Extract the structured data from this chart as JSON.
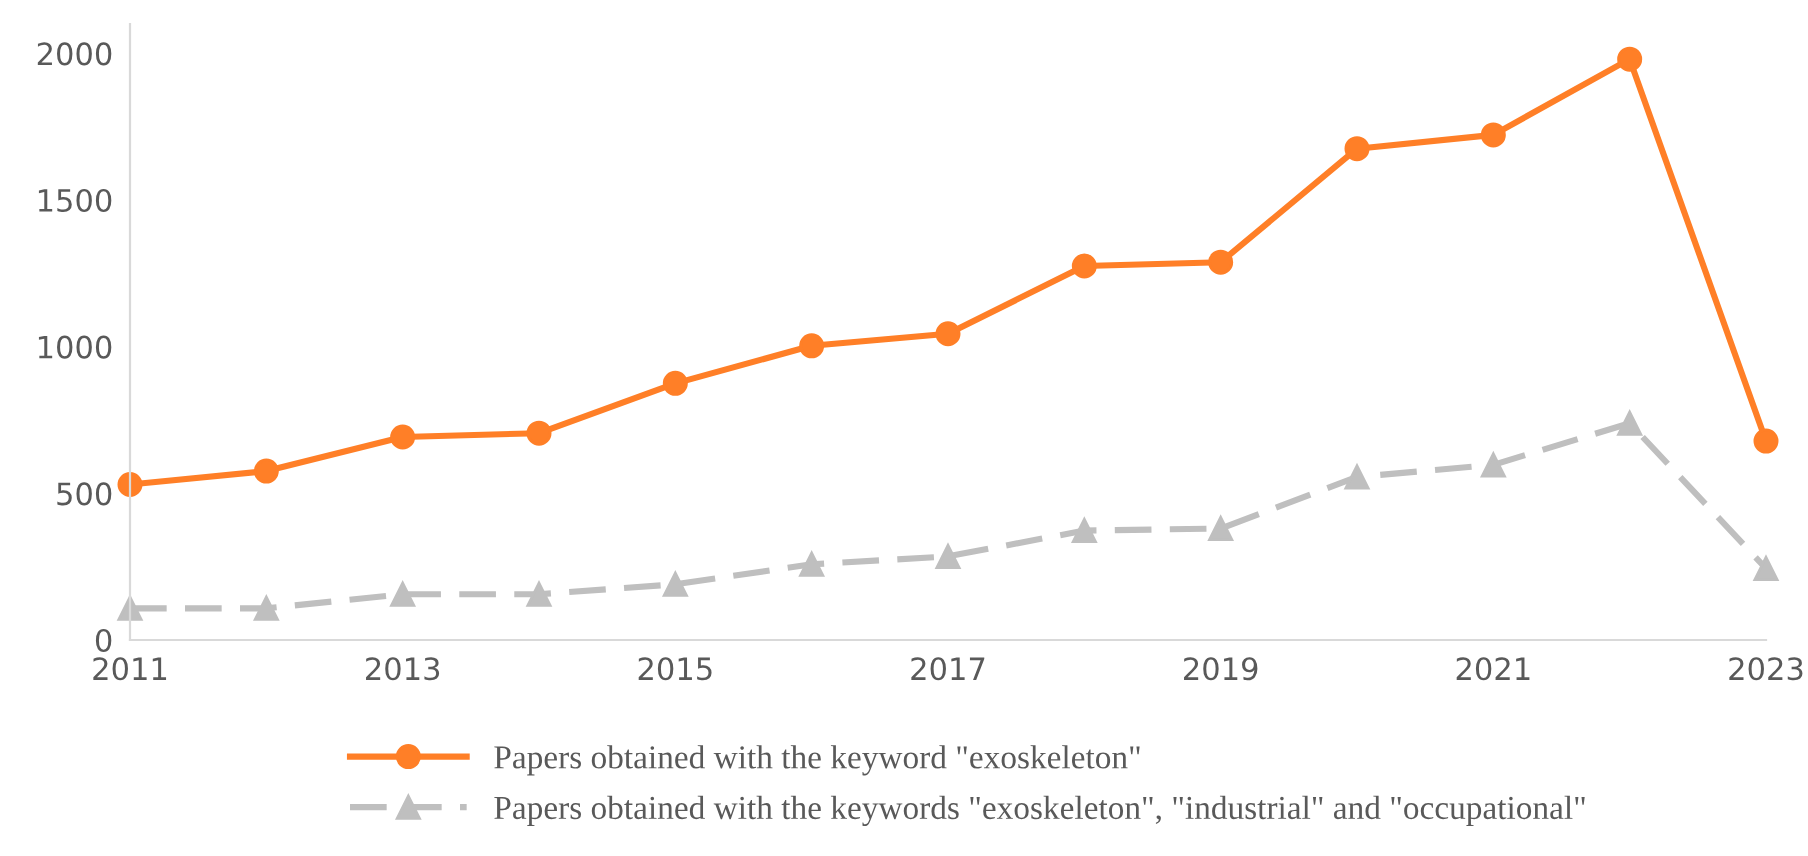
{
  "chart_data": {
    "type": "line",
    "x": [
      2011,
      2012,
      2013,
      2014,
      2015,
      2016,
      2017,
      2018,
      2019,
      2020,
      2021,
      2022,
      2023
    ],
    "series": [
      {
        "name": "Papers obtained with the keyword \"exoskeleton\"",
        "color": "#ff7f27",
        "marker": "circle",
        "line_style": "solid",
        "values": [
          530,
          576,
          692,
          705,
          875,
          1003,
          1044,
          1275,
          1288,
          1675,
          1722,
          1980,
          678
        ]
      },
      {
        "name": "Papers obtained with the keywords \"exoskeleton\", \"industrial\" and \"occupational\"",
        "color": "#bfbfbf",
        "marker": "triangle",
        "line_style": "dashed",
        "values": [
          108,
          108,
          156,
          156,
          190,
          258,
          285,
          373,
          380,
          556,
          597,
          739,
          244
        ]
      }
    ],
    "xlim": [
      2011,
      2023
    ],
    "xticks": [
      2011,
      2013,
      2015,
      2017,
      2019,
      2021,
      2023
    ],
    "ylim": [
      0,
      2100
    ],
    "yticks": [
      0,
      500,
      1000,
      1500,
      2000
    ],
    "grid": false,
    "legend": "bottom"
  }
}
